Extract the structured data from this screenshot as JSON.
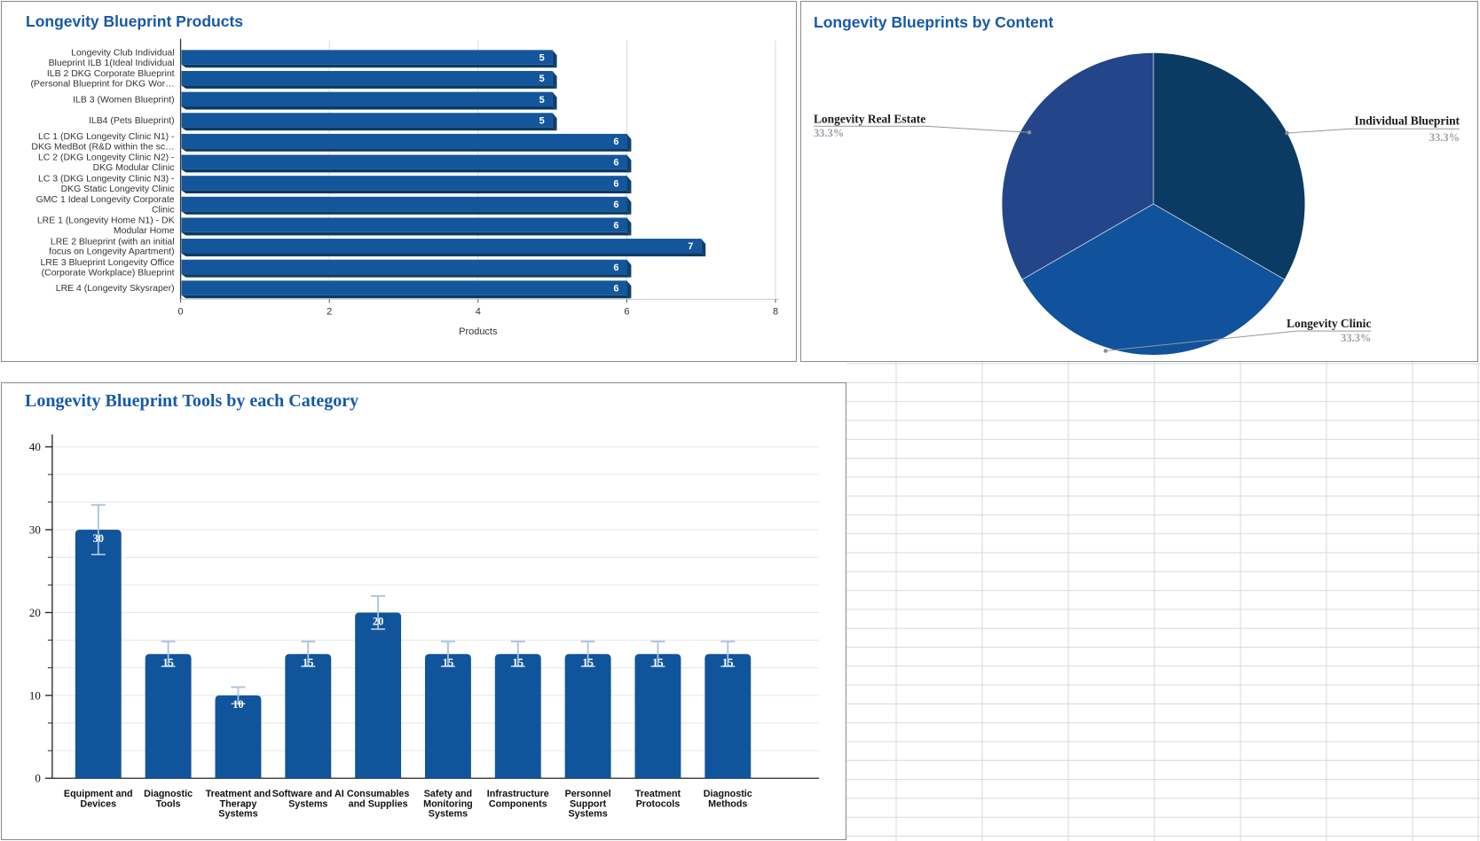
{
  "colors": {
    "title_blue": "#1659a9",
    "grid_line": "#d9d9d9",
    "panel_border": "#8a8a8a",
    "leader_gray": "#979797",
    "pct_gray": "#9aa1a8"
  },
  "chart_data": [
    {
      "id": "products",
      "type": "bar",
      "orientation": "horizontal",
      "title": "Longevity Blueprint Products",
      "xlabel": "Products",
      "xticks": [
        0,
        2,
        4,
        6,
        8
      ],
      "xlim": [
        0,
        8
      ],
      "grid": true,
      "bar_color": "#14569c",
      "shadow_color": "#0a3a63",
      "cap_color": "#0d416f",
      "value_label_color": "#ffffff",
      "categories": [
        "Longevity Club Individual Blueprint ILB 1(Ideal Individual",
        "ILB 2 DKG Corporate Blueprint (Personal Blueprint for DKG Wor…",
        "ILB 3 (Women Blueprint)",
        "ILB4 (Pets Blueprint)",
        "LC 1 (DKG Longevity Clinic N1) - DKG MedBot (R&D within the sc…",
        "LC 2 (DKG Longevity Clinic N2) - DKG Modular Clinic",
        "LC 3 (DKG Longevity Clinic N3) - DKG Static Longevity Clinic",
        "GMC 1 Ideal Longevity Corporate Clinic",
        "LRE 1 (Longevity Home N1) - DK Modular Home",
        "LRE 2 Blueprint (with an initial focus on Longevity Apartment)",
        "LRE 3 Blueprint Longevity Office (Corporate Workplace) Blueprint",
        "LRE 4 (Longevity Skysraper)"
      ],
      "category_lines": [
        [
          "Longevity Club Individual",
          "Blueprint ILB 1(Ideal Individual"
        ],
        [
          "ILB 2 DKG Corporate Blueprint",
          "(Personal Blueprint for DKG Wor…"
        ],
        [
          "ILB 3 (Women Blueprint)"
        ],
        [
          "ILB4 (Pets Blueprint)"
        ],
        [
          "LC 1 (DKG Longevity Clinic N1) -",
          "DKG MedBot (R&D within the sc…"
        ],
        [
          "LC 2 (DKG Longevity Clinic N2) -",
          "DKG Modular Clinic"
        ],
        [
          "LC 3 (DKG Longevity Clinic N3) -",
          "DKG Static Longevity Clinic"
        ],
        [
          "GMC 1 Ideal Longevity Corporate",
          "Clinic"
        ],
        [
          "LRE 1 (Longevity Home N1) - DK",
          "Modular Home"
        ],
        [
          "LRE 2 Blueprint (with an initial",
          "focus on Longevity Apartment)"
        ],
        [
          "LRE 3 Blueprint Longevity Office",
          "(Corporate Workplace) Blueprint"
        ],
        [
          "LRE 4 (Longevity Skysraper)"
        ]
      ],
      "values": [
        5,
        5,
        5,
        5,
        6,
        6,
        6,
        6,
        6,
        7,
        6,
        6
      ]
    },
    {
      "id": "content",
      "type": "pie",
      "title": "Longevity Blueprints by Content",
      "start_angle": 90,
      "direction": "clockwise",
      "slices": [
        {
          "label": "Individual Blueprint",
          "pct": "33.3%",
          "value": 33.3,
          "color": "#0b3a63"
        },
        {
          "label": "Longevity Clinic",
          "pct": "33.3%",
          "value": 33.3,
          "color": "#10529b"
        },
        {
          "label": "Longevity Real Estate",
          "pct": "33.3%",
          "value": 33.3,
          "color": "#24458a"
        }
      ]
    },
    {
      "id": "tools",
      "type": "bar",
      "orientation": "vertical",
      "title": "Longevity Blueprint Tools by each Category",
      "yticks": [
        0,
        10,
        20,
        30,
        40
      ],
      "ylim": [
        0,
        40
      ],
      "grid": true,
      "bar_color": "#10549b",
      "error_color": "#a9c3de",
      "value_label_color": "#ffffff",
      "categories": [
        "Equipment and Devices",
        "Diagnostic Tools",
        "Treatment and Therapy Systems",
        "Software and AI Systems",
        "Consumables and Supplies",
        "Safety and Monitoring Systems",
        "Infrastructure Components",
        "Personnel Support Systems",
        "Treatment Protocols",
        "Diagnostic Methods"
      ],
      "category_lines": [
        [
          "Equipment and",
          "Devices"
        ],
        [
          "Diagnostic",
          "Tools"
        ],
        [
          "Treatment and",
          "Therapy",
          "Systems"
        ],
        [
          "Software and AI",
          "Systems"
        ],
        [
          "Consumables",
          "and Supplies"
        ],
        [
          "Safety and",
          "Monitoring",
          "Systems"
        ],
        [
          "Infrastructure",
          "Components"
        ],
        [
          "Personnel",
          "Support",
          "Systems"
        ],
        [
          "Treatment",
          "Protocols"
        ],
        [
          "Diagnostic",
          "Methods"
        ]
      ],
      "values": [
        30,
        15,
        10,
        15,
        20,
        15,
        15,
        15,
        15,
        15
      ],
      "errors": [
        3,
        1.5,
        1,
        1.5,
        2,
        1.5,
        1.5,
        1.5,
        1.5,
        1.5
      ]
    }
  ]
}
